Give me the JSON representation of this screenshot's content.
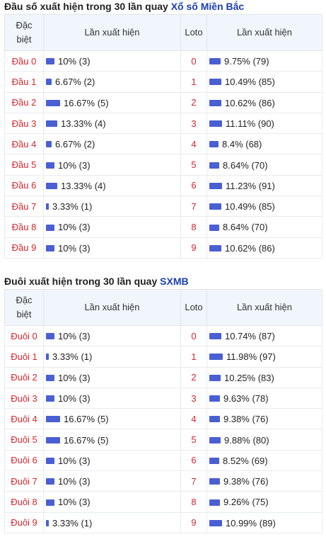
{
  "dau": {
    "title_prefix": "Đầu số xuất hiện trong 30 lần quay",
    "title_link": "Xổ số Miền Bắc",
    "headers": [
      "Đặc biệt",
      "Lần xuất hiện",
      "Loto",
      "Lần xuất hiện"
    ],
    "rows": [
      {
        "label": "Đầu 0",
        "db_pct": 10,
        "db_text": "10% (3)",
        "loto": "0",
        "loto_pct": 9.75,
        "loto_text": "9.75% (79)"
      },
      {
        "label": "Đầu 1",
        "db_pct": 6.67,
        "db_text": "6.67% (2)",
        "loto": "1",
        "loto_pct": 10.49,
        "loto_text": "10.49% (85)"
      },
      {
        "label": "Đầu 2",
        "db_pct": 16.67,
        "db_text": "16.67% (5)",
        "loto": "2",
        "loto_pct": 10.62,
        "loto_text": "10.62% (86)"
      },
      {
        "label": "Đầu 3",
        "db_pct": 13.33,
        "db_text": "13.33% (4)",
        "loto": "3",
        "loto_pct": 11.11,
        "loto_text": "11.11% (90)"
      },
      {
        "label": "Đầu 4",
        "db_pct": 6.67,
        "db_text": "6.67% (2)",
        "loto": "4",
        "loto_pct": 8.4,
        "loto_text": "8.4% (68)"
      },
      {
        "label": "Đầu 5",
        "db_pct": 10,
        "db_text": "10% (3)",
        "loto": "5",
        "loto_pct": 8.64,
        "loto_text": "8.64% (70)"
      },
      {
        "label": "Đầu 6",
        "db_pct": 13.33,
        "db_text": "13.33% (4)",
        "loto": "6",
        "loto_pct": 11.23,
        "loto_text": "11.23% (91)"
      },
      {
        "label": "Đầu 7",
        "db_pct": 3.33,
        "db_text": "3.33% (1)",
        "loto": "7",
        "loto_pct": 10.49,
        "loto_text": "10.49% (85)"
      },
      {
        "label": "Đầu 8",
        "db_pct": 10,
        "db_text": "10% (3)",
        "loto": "8",
        "loto_pct": 8.64,
        "loto_text": "8.64% (70)"
      },
      {
        "label": "Đầu 9",
        "db_pct": 10,
        "db_text": "10% (3)",
        "loto": "9",
        "loto_pct": 10.62,
        "loto_text": "10.62% (86)"
      }
    ]
  },
  "duoi": {
    "title_prefix": "Đuôi xuất hiện trong 30 lần quay",
    "title_link": "SXMB",
    "headers": [
      "Đặc biệt",
      "Lần xuất hiện",
      "Loto",
      "Lần xuất hiện"
    ],
    "rows": [
      {
        "label": "Đuôi 0",
        "db_pct": 10,
        "db_text": "10% (3)",
        "loto": "0",
        "loto_pct": 10.74,
        "loto_text": "10.74% (87)"
      },
      {
        "label": "Đuôi 1",
        "db_pct": 3.33,
        "db_text": "3.33% (1)",
        "loto": "1",
        "loto_pct": 11.98,
        "loto_text": "11.98% (97)"
      },
      {
        "label": "Đuôi 2",
        "db_pct": 10,
        "db_text": "10% (3)",
        "loto": "2",
        "loto_pct": 10.25,
        "loto_text": "10.25% (83)"
      },
      {
        "label": "Đuôi 3",
        "db_pct": 10,
        "db_text": "10% (3)",
        "loto": "3",
        "loto_pct": 9.63,
        "loto_text": "9.63% (78)"
      },
      {
        "label": "Đuôi 4",
        "db_pct": 16.67,
        "db_text": "16.67% (5)",
        "loto": "4",
        "loto_pct": 9.38,
        "loto_text": "9.38% (76)"
      },
      {
        "label": "Đuôi 5",
        "db_pct": 16.67,
        "db_text": "16.67% (5)",
        "loto": "5",
        "loto_pct": 9.88,
        "loto_text": "9.88% (80)"
      },
      {
        "label": "Đuôi 6",
        "db_pct": 10,
        "db_text": "10% (3)",
        "loto": "6",
        "loto_pct": 8.52,
        "loto_text": "8.52% (69)"
      },
      {
        "label": "Đuôi 7",
        "db_pct": 10,
        "db_text": "10% (3)",
        "loto": "7",
        "loto_pct": 9.38,
        "loto_text": "9.38% (76)"
      },
      {
        "label": "Đuôi 8",
        "db_pct": 10,
        "db_text": "10% (3)",
        "loto": "8",
        "loto_pct": 9.26,
        "loto_text": "9.26% (75)"
      },
      {
        "label": "Đuôi 9",
        "db_pct": 3.33,
        "db_text": "3.33% (1)",
        "loto": "9",
        "loto_pct": 10.99,
        "loto_text": "10.99% (89)"
      }
    ]
  },
  "colors": {
    "bar": "#4a5fd4",
    "label_red": "#d8262e",
    "link_blue": "#1a3fb0",
    "header_bg": "#f0f6fc"
  }
}
